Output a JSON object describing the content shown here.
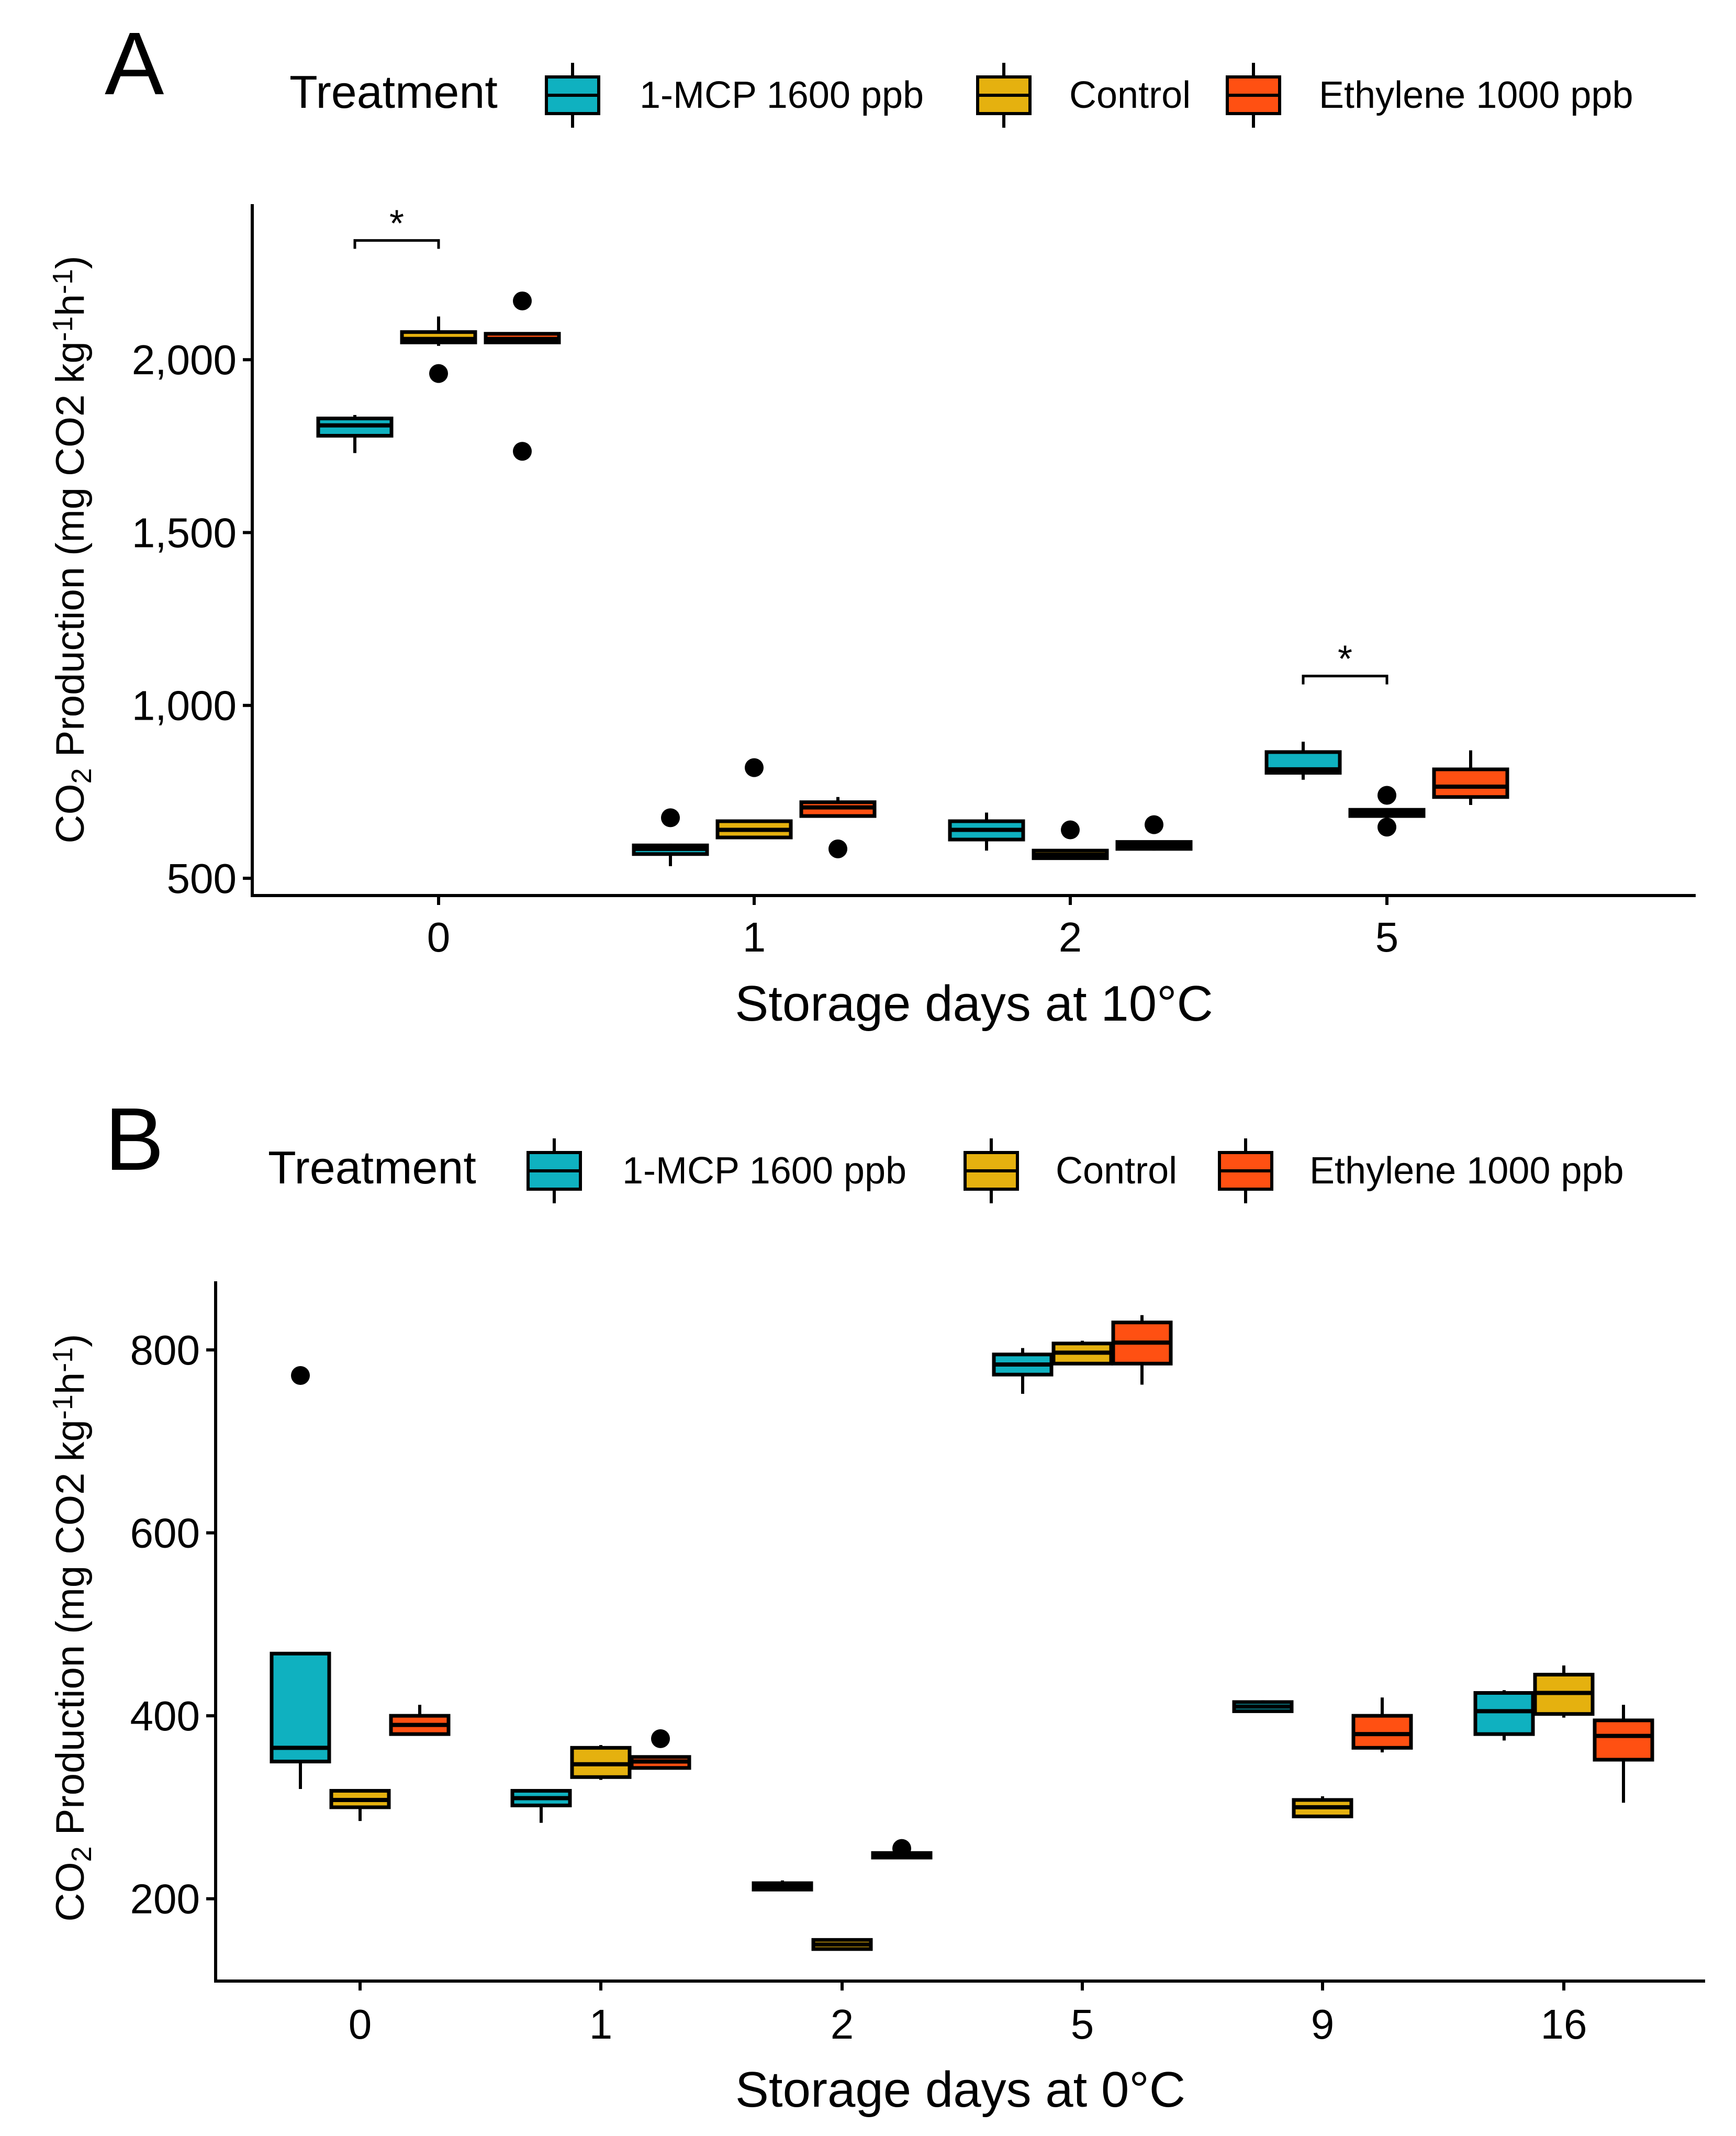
{
  "colors": {
    "1-MCP 1600 ppb": "#0fb1c0",
    "Control": "#e5b10f",
    "Ethylene 1000 ppb": "#ff5012",
    "stroke": "#000000"
  },
  "chart_data": [
    {
      "type": "boxplot",
      "panel_label": "A",
      "legend_title": "Treatment",
      "legend_placement": "top",
      "series": [
        "1-MCP 1600 ppb",
        "Control",
        "Ethylene 1000 ppb"
      ],
      "categories": [
        "0",
        "1",
        "2",
        "5"
      ],
      "xlabel": "Storage days at 10°C",
      "ylabel": {
        "main": "CO",
        "sub": "2",
        "rest": " Production (mg CO2 kg",
        "sup1": "-1",
        "mid": "h",
        "sup2": "-1",
        "end": ")"
      },
      "ylim": [
        450,
        2450
      ],
      "yticks": [
        500,
        1000,
        1500,
        2000
      ],
      "ytick_labels": [
        "500",
        "1,000",
        "1,500",
        "2,000"
      ],
      "boxes": [
        {
          "category": "0",
          "series": "1-MCP 1600 ppb",
          "min": 1730,
          "q1": 1780,
          "median": 1810,
          "q3": 1830,
          "max": 1840,
          "outliers": []
        },
        {
          "category": "0",
          "series": "Control",
          "min": 2040,
          "q1": 2050,
          "median": 2060,
          "q3": 2080,
          "max": 2125,
          "outliers": [
            1960
          ]
        },
        {
          "category": "0",
          "series": "Ethylene 1000 ppb",
          "min": 2050,
          "q1": 2050,
          "median": 2060,
          "q3": 2075,
          "max": 2075,
          "outliers": [
            2170,
            1735
          ]
        },
        {
          "category": "1",
          "series": "1-MCP 1600 ppb",
          "min": 535,
          "q1": 570,
          "median": 585,
          "q3": 595,
          "max": 600,
          "outliers": [
            675
          ]
        },
        {
          "category": "1",
          "series": "Control",
          "min": 615,
          "q1": 618,
          "median": 640,
          "q3": 665,
          "max": 670,
          "outliers": [
            820
          ]
        },
        {
          "category": "1",
          "series": "Ethylene 1000 ppb",
          "min": 680,
          "q1": 680,
          "median": 705,
          "q3": 720,
          "max": 735,
          "outliers": [
            585
          ]
        },
        {
          "category": "2",
          "series": "1-MCP 1600 ppb",
          "min": 580,
          "q1": 612,
          "median": 640,
          "q3": 665,
          "max": 690,
          "outliers": []
        },
        {
          "category": "2",
          "series": "Control",
          "min": 558,
          "q1": 558,
          "median": 568,
          "q3": 580,
          "max": 580,
          "outliers": [
            640
          ]
        },
        {
          "category": "2",
          "series": "Ethylene 1000 ppb",
          "min": 580,
          "q1": 585,
          "median": 595,
          "q3": 605,
          "max": 605,
          "outliers": [
            655
          ]
        },
        {
          "category": "5",
          "series": "1-MCP 1600 ppb",
          "min": 785,
          "q1": 805,
          "median": 815,
          "q3": 865,
          "max": 895,
          "outliers": []
        },
        {
          "category": "5",
          "series": "Control",
          "min": 680,
          "q1": 680,
          "median": 688,
          "q3": 698,
          "max": 700,
          "outliers": [
            740,
            648
          ]
        },
        {
          "category": "5",
          "series": "Ethylene 1000 ppb",
          "min": 712,
          "q1": 735,
          "median": 765,
          "q3": 815,
          "max": 870,
          "outliers": []
        }
      ],
      "annotations": [
        {
          "text": "*",
          "category": "0",
          "from": "1-MCP 1600 ppb",
          "to": "Control",
          "y": 2345
        },
        {
          "text": "*",
          "category": "5",
          "from": "1-MCP 1600 ppb",
          "to": "Control",
          "y": 1085
        }
      ]
    },
    {
      "type": "boxplot",
      "panel_label": "B",
      "legend_title": "Treatment",
      "legend_placement": "top",
      "series": [
        "1-MCP 1600 ppb",
        "Control",
        "Ethylene 1000 ppb"
      ],
      "categories": [
        "0",
        "1",
        "2",
        "5",
        "9",
        "16"
      ],
      "xlabel": "Storage days at 0°C",
      "ylabel": {
        "main": "CO",
        "sub": "2",
        "rest": " Production (mg CO2 kg",
        "sup1": "-1",
        "mid": "h",
        "sup2": "-1",
        "end": ")"
      },
      "ylim": [
        110,
        875
      ],
      "yticks": [
        200,
        400,
        600,
        800
      ],
      "ytick_labels": [
        "200",
        "400",
        "600",
        "800"
      ],
      "boxes": [
        {
          "category": "0",
          "series": "1-MCP 1600 ppb",
          "min": 320,
          "q1": 350,
          "median": 365,
          "q3": 468,
          "max": 468,
          "outliers": [
            772
          ]
        },
        {
          "category": "0",
          "series": "Control",
          "min": 285,
          "q1": 300,
          "median": 308,
          "q3": 318,
          "max": 318,
          "outliers": []
        },
        {
          "category": "0",
          "series": "Ethylene 1000 ppb",
          "min": 380,
          "q1": 380,
          "median": 390,
          "q3": 400,
          "max": 412,
          "outliers": []
        },
        {
          "category": "1",
          "series": "1-MCP 1600 ppb",
          "min": 283,
          "q1": 302,
          "median": 310,
          "q3": 318,
          "max": 318,
          "outliers": []
        },
        {
          "category": "1",
          "series": "Control",
          "min": 330,
          "q1": 333,
          "median": 347,
          "q3": 365,
          "max": 368,
          "outliers": []
        },
        {
          "category": "1",
          "series": "Ethylene 1000 ppb",
          "min": 343,
          "q1": 343,
          "median": 350,
          "q3": 355,
          "max": 355,
          "outliers": [
            375
          ]
        },
        {
          "category": "2",
          "series": "1-MCP 1600 ppb",
          "min": 210,
          "q1": 210,
          "median": 213,
          "q3": 217,
          "max": 220,
          "outliers": []
        },
        {
          "category": "2",
          "series": "Control",
          "min": 145,
          "q1": 145,
          "median": 150,
          "q3": 155,
          "max": 155,
          "outliers": []
        },
        {
          "category": "2",
          "series": "Ethylene 1000 ppb",
          "min": 245,
          "q1": 245,
          "median": 248,
          "q3": 250,
          "max": 250,
          "outliers": [
            255
          ]
        },
        {
          "category": "5",
          "series": "1-MCP 1600 ppb",
          "min": 752,
          "q1": 773,
          "median": 784,
          "q3": 795,
          "max": 802,
          "outliers": []
        },
        {
          "category": "5",
          "series": "Control",
          "min": 785,
          "q1": 785,
          "median": 797,
          "q3": 807,
          "max": 810,
          "outliers": []
        },
        {
          "category": "5",
          "series": "Ethylene 1000 ppb",
          "min": 762,
          "q1": 785,
          "median": 808,
          "q3": 830,
          "max": 838,
          "outliers": []
        },
        {
          "category": "9",
          "series": "1-MCP 1600 ppb",
          "min": 405,
          "q1": 405,
          "median": 410,
          "q3": 415,
          "max": 417,
          "outliers": []
        },
        {
          "category": "9",
          "series": "Control",
          "min": 290,
          "q1": 290,
          "median": 300,
          "q3": 308,
          "max": 312,
          "outliers": []
        },
        {
          "category": "9",
          "series": "Ethylene 1000 ppb",
          "min": 360,
          "q1": 365,
          "median": 380,
          "q3": 400,
          "max": 420,
          "outliers": []
        },
        {
          "category": "16",
          "series": "1-MCP 1600 ppb",
          "min": 373,
          "q1": 380,
          "median": 405,
          "q3": 425,
          "max": 428,
          "outliers": []
        },
        {
          "category": "16",
          "series": "Control",
          "min": 398,
          "q1": 402,
          "median": 425,
          "q3": 445,
          "max": 455,
          "outliers": []
        },
        {
          "category": "16",
          "series": "Ethylene 1000 ppb",
          "min": 305,
          "q1": 352,
          "median": 378,
          "q3": 395,
          "max": 412,
          "outliers": []
        }
      ],
      "annotations": []
    }
  ]
}
